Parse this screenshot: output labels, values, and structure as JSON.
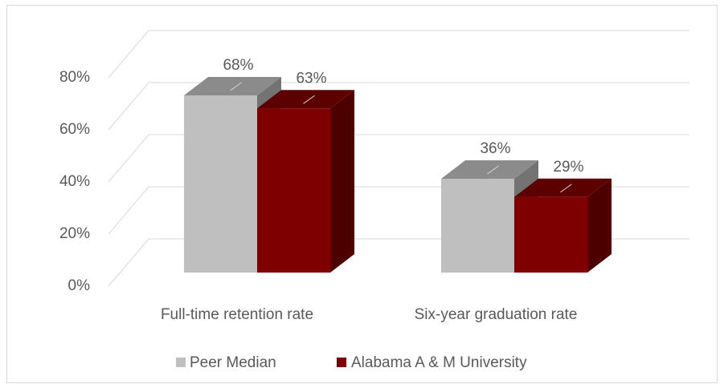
{
  "chart_data": {
    "type": "bar3d",
    "categories": [
      "Full-time retention rate",
      "Six-year graduation rate"
    ],
    "series": [
      {
        "name": "Peer Median",
        "color": "#bfbfbf",
        "values": [
          68,
          36
        ],
        "value_labels": [
          "68%",
          "36%"
        ]
      },
      {
        "name": "Alabama A & M University",
        "color": "#7f0000",
        "values": [
          63,
          29
        ],
        "value_labels": [
          "63%",
          "29%"
        ]
      }
    ],
    "ylim": [
      0,
      80
    ],
    "yticks": [
      {
        "value": 0,
        "label": "0%"
      },
      {
        "value": 20,
        "label": "20%"
      },
      {
        "value": 40,
        "label": "40%"
      },
      {
        "value": 60,
        "label": "60%"
      },
      {
        "value": 80,
        "label": "80%"
      }
    ],
    "grid": true,
    "legend": "bottom"
  }
}
